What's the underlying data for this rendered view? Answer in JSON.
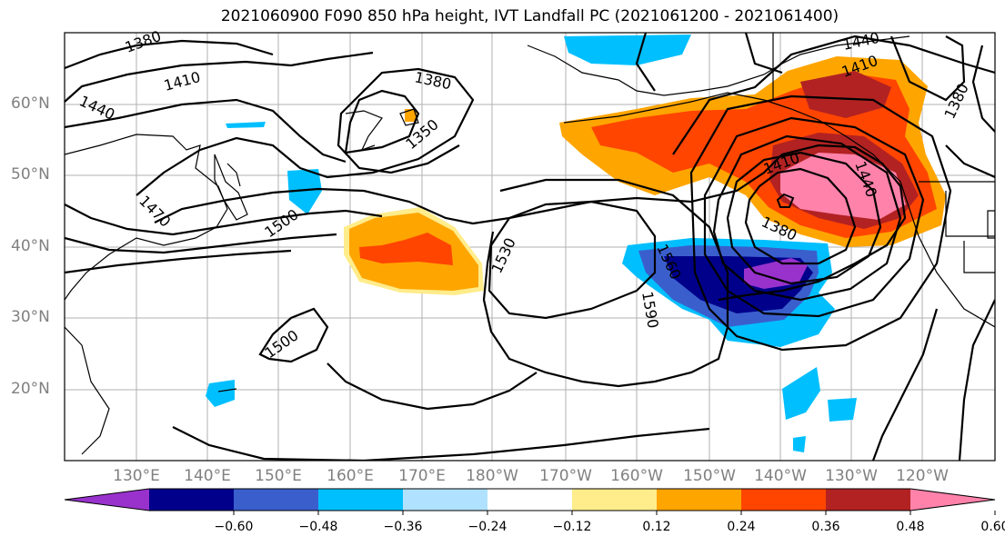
{
  "title": "2021060900 F090 850 hPa height, IVT Landfall PC (2021061200 - 2021061400)",
  "lat_labels": [
    "60°N",
    "50°N",
    "40°N",
    "30°N",
    "20°N"
  ],
  "lon_labels": [
    "130°E",
    "140°E",
    "150°E",
    "160°E",
    "170°E",
    "180°W",
    "170°W",
    "160°W",
    "150°W",
    "140°W",
    "130°W",
    "120°W"
  ],
  "contour_labels": [
    "1380",
    "1410",
    "1440",
    "1470",
    "1500",
    "1380",
    "1350",
    "1500",
    "1530",
    "1560",
    "1590",
    "1410",
    "1380",
    "1440",
    "1410",
    "1440",
    "1380"
  ],
  "colorbar": {
    "ticks": [
      "−0.60",
      "−0.48",
      "−0.36",
      "−0.24",
      "−0.12",
      "0.12",
      "0.24",
      "0.36",
      "0.48",
      "0.60"
    ],
    "colors": [
      "#9932CC",
      "#00008B",
      "#3A5FCD",
      "#00BFFF",
      "#B0E2FF",
      "#FFFFFF",
      "#FFEC8B",
      "#FFA500",
      "#FF4500",
      "#B22222",
      "#FF82AB"
    ]
  }
}
